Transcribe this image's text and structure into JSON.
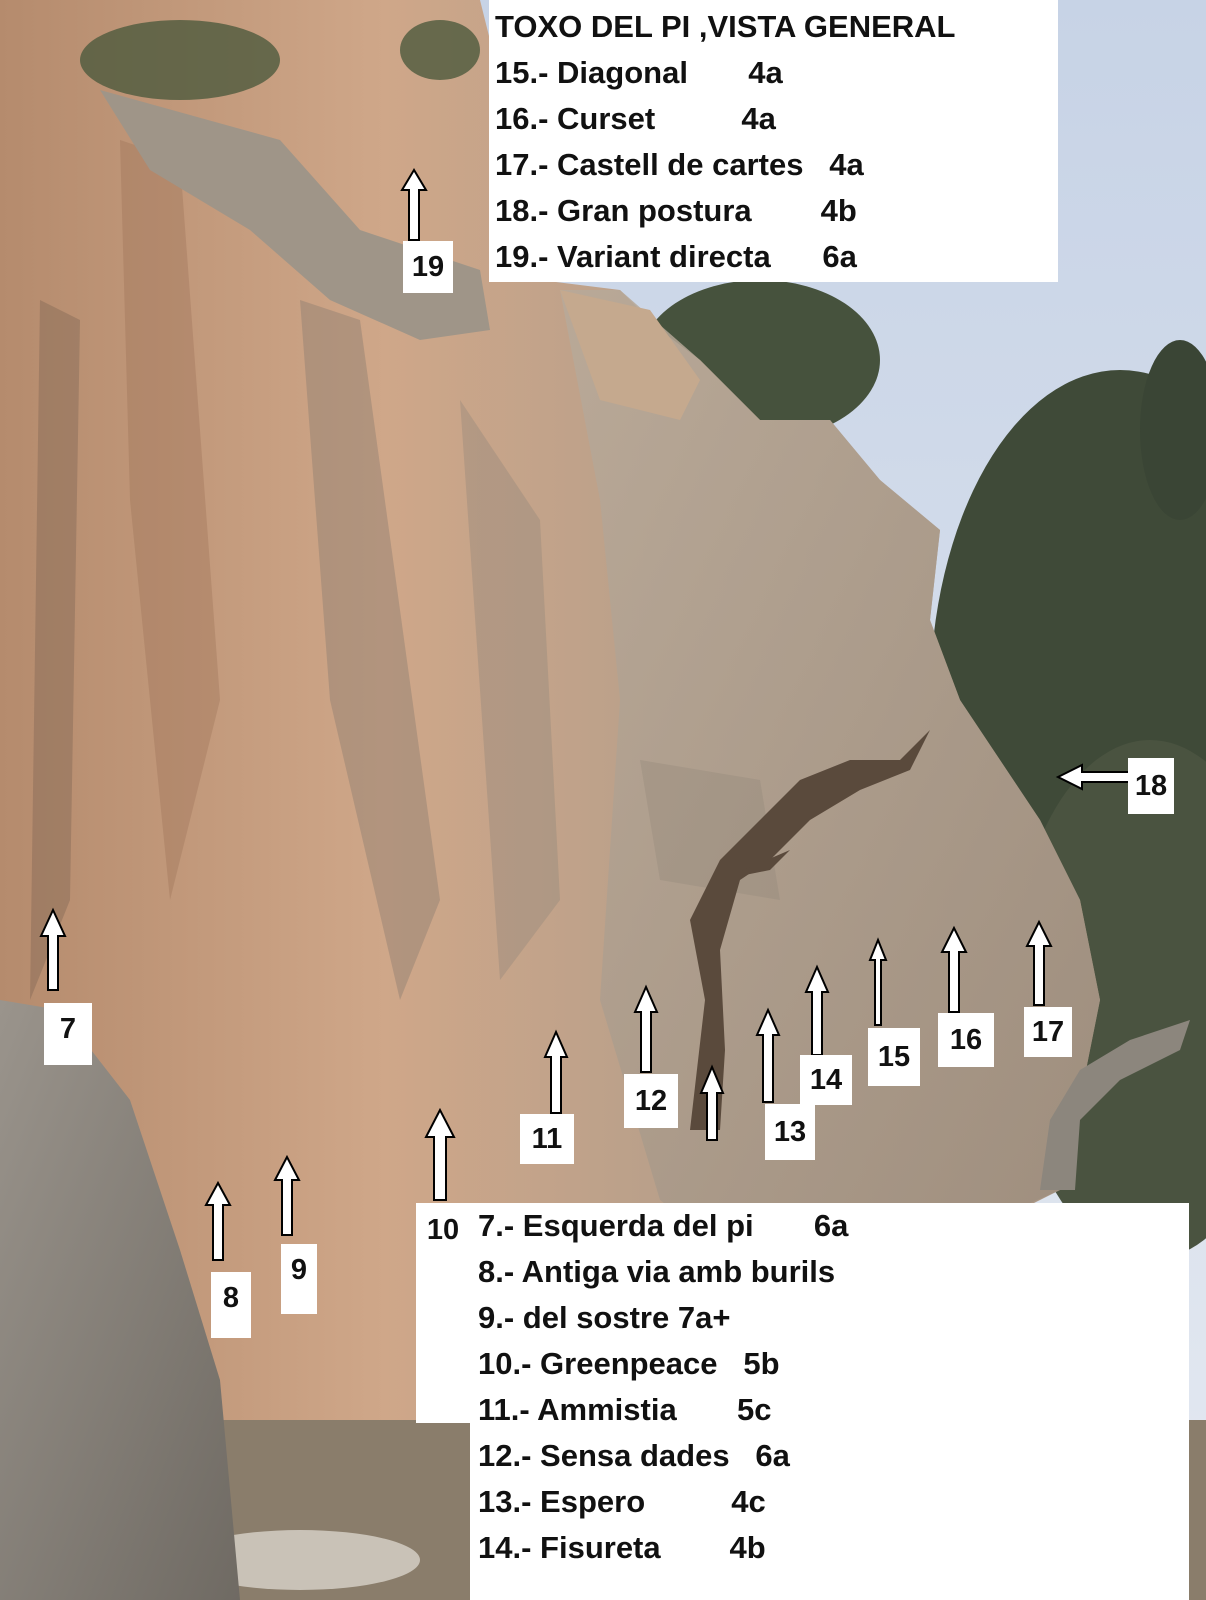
{
  "legend_top": {
    "title": "TOXO DEL PI ,VISTA GENERAL",
    "lines": [
      "15.- Diagonal       4a",
      "16.- Curset          4a",
      "17.- Castell de cartes   4a",
      "18.- Gran postura        4b",
      "19.- Variant directa      6a"
    ]
  },
  "legend_bottom": {
    "lines": [
      "7.- Esquerda del pi       6a",
      "8.- Antiga via amb burils",
      "9.- del sostre 7a+",
      "10.- Greenpeace   5b",
      "11.- Ammistia       5c",
      "12.- Sensa dades   6a",
      "13.- Espero          4c",
      "14.- Fisureta        4b"
    ]
  },
  "route_markers": {
    "m7": "7",
    "m8": "8",
    "m9": "9",
    "m10": "10",
    "m11": "11",
    "m12": "12",
    "m13": "13",
    "m14": "14",
    "m15": "15",
    "m16": "16",
    "m17": "17",
    "m18": "18",
    "m19": "19"
  }
}
